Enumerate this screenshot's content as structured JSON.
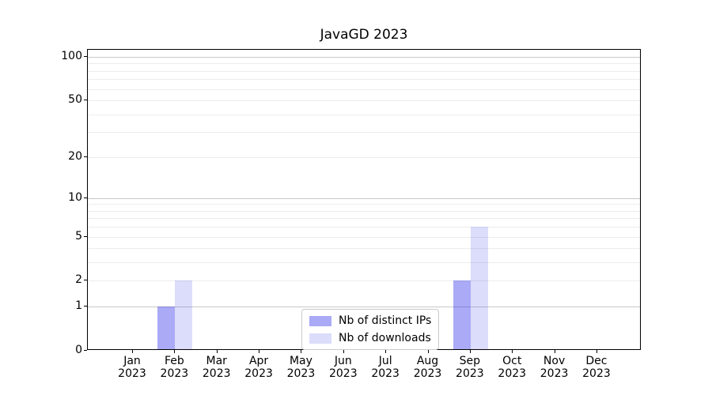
{
  "window": {
    "title": "JavaGD 2023"
  },
  "colors": {
    "background": "#ffffff",
    "axis": "#000000",
    "grid_minor": "#ececec",
    "grid_major": "#c9c9c9",
    "legend_border": "#c9c9c9",
    "bar_distinct_ips": "rgba(20,20,230,0.36)",
    "bar_downloads": "rgba(20,20,230,0.15)",
    "bar_distinct_ips_hex_on_white": "#a9a9f6",
    "bar_downloads_hex_on_white": "#dbdbf8"
  },
  "chart_data": {
    "type": "bar",
    "title": "JavaGD 2023",
    "xlabel": "",
    "ylabel": "",
    "year_label": "2023",
    "categories": [
      "Jan",
      "Feb",
      "Mar",
      "Apr",
      "May",
      "Jun",
      "Jul",
      "Aug",
      "Sep",
      "Oct",
      "Nov",
      "Dec"
    ],
    "series": [
      {
        "name": "Nb of distinct IPs",
        "color": "rgba(20,20,230,0.36)",
        "values": [
          0,
          1,
          0,
          0,
          0,
          0,
          0,
          0,
          2,
          0,
          0,
          0
        ]
      },
      {
        "name": "Nb of downloads",
        "color": "rgba(20,20,230,0.15)",
        "values": [
          0,
          2,
          0,
          0,
          0,
          0,
          0,
          0,
          6,
          0,
          0,
          0
        ]
      }
    ],
    "yscale": "log1p",
    "ylim": [
      0,
      112
    ],
    "yticks": [
      0,
      1,
      2,
      5,
      10,
      20,
      50,
      100
    ],
    "minor_gridlines": [
      2,
      3,
      4,
      5,
      6,
      7,
      8,
      9,
      20,
      30,
      40,
      50,
      60,
      70,
      80,
      90
    ],
    "major_gridlines": [
      1,
      10,
      100
    ],
    "grid": true,
    "legend_position": "lower center"
  }
}
